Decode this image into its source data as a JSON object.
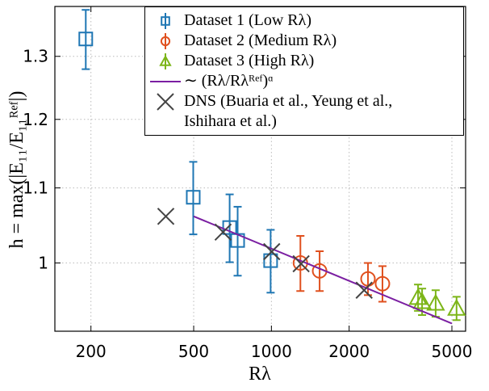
{
  "chart_data": {
    "type": "scatter",
    "xlabel": "Rλ",
    "ylabel": "h = max(|E₁₁/E₁₁ᴿᵉᶠ|)",
    "xscale": "log",
    "yscale": "log",
    "xlim": [
      145,
      5650
    ],
    "ylim": [
      0.917,
      1.385
    ],
    "xticks": [
      200,
      500,
      1000,
      2000,
      5000
    ],
    "yticks": [
      1,
      1.1,
      1.2,
      1.3
    ],
    "grid": true,
    "legend": "upper right",
    "series": [
      {
        "name": "Dataset 1 (Low Rλ)",
        "color": "#1f77b4",
        "marker": "square",
        "x": [
          191,
          498,
          689,
          740,
          993
        ],
        "values": [
          1.329,
          1.087,
          1.046,
          1.029,
          1.003
        ],
        "yerr": [
          0.05,
          0.05,
          0.045,
          0.045,
          0.04
        ]
      },
      {
        "name": "Dataset 2 (Medium Rλ)",
        "color": "#e0501e",
        "marker": "circle",
        "x": [
          1295,
          1537,
          2366,
          2692
        ],
        "values": [
          1.0,
          0.99,
          0.98,
          0.974
        ],
        "yerr": [
          0.035,
          0.025,
          0.02,
          0.022
        ]
      },
      {
        "name": "Dataset 3 (High Rλ)",
        "color": "#7cb518",
        "marker": "triangle",
        "x": [
          3698,
          3833,
          4326,
          5212
        ],
        "values": [
          0.957,
          0.952,
          0.95,
          0.944
        ],
        "yerr": [
          0.016,
          0.016,
          0.016,
          0.014
        ]
      },
      {
        "name": "∼ (Rλ/Rλᴿᵉᶠ)ᵅ",
        "color": "#7b1fa2",
        "marker": "line",
        "x": [
          500,
          5000
        ],
        "values": [
          1.061,
          0.926
        ]
      },
      {
        "name": "DNS (Buaria et al., Yeung et al.,\nIshihara et al.)",
        "color": "#444444",
        "marker": "x",
        "x": [
          390,
          650,
          1003,
          1303,
          2286
        ],
        "values": [
          1.061,
          1.04,
          1.0145,
          0.999,
          0.966
        ]
      }
    ]
  }
}
